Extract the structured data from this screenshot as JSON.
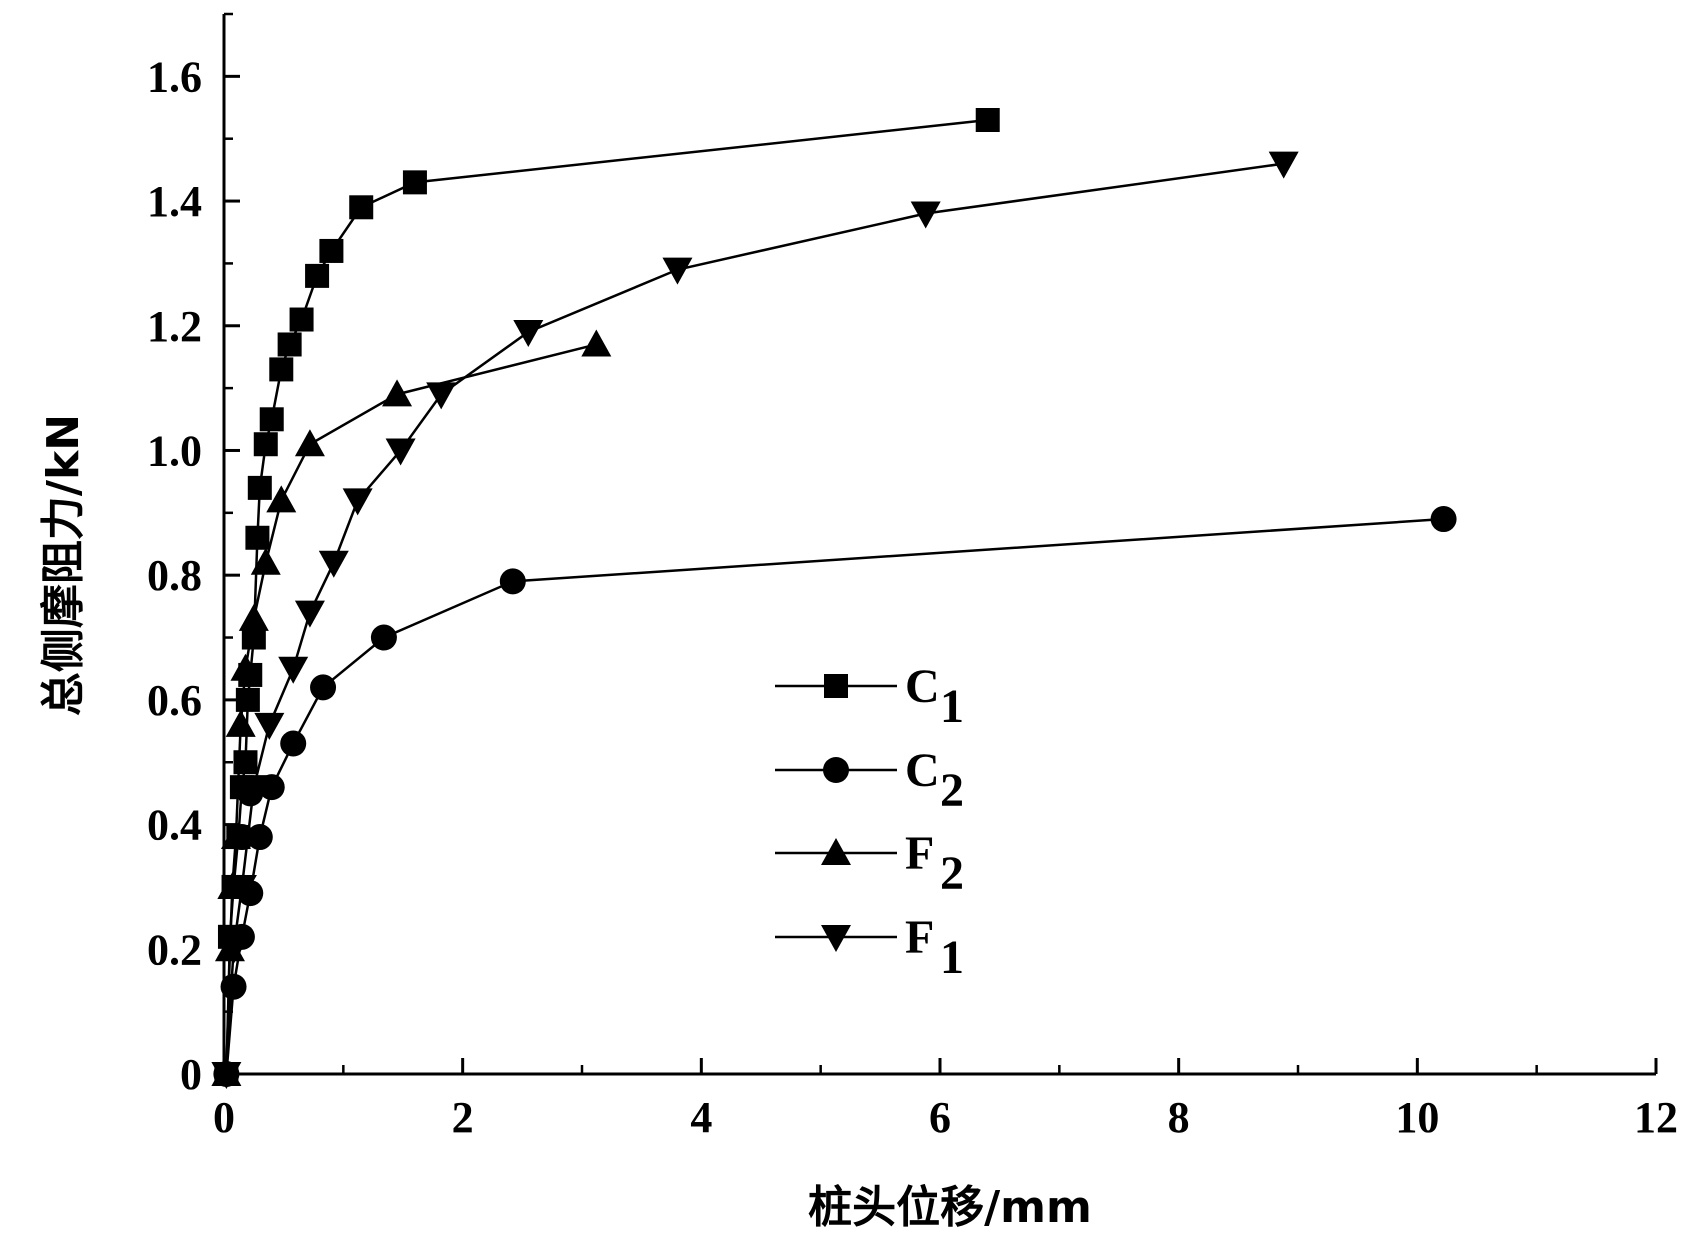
{
  "chart_data": {
    "type": "line",
    "title": "",
    "xlabel": "桩头位移/mm",
    "ylabel": "总侧摩阻力/kN",
    "xlim": [
      0,
      12
    ],
    "ylim": [
      0,
      1.7
    ],
    "xticks": [
      0,
      2,
      4,
      6,
      8,
      10,
      12
    ],
    "xtick_labels": [
      "0",
      "2",
      "4",
      "6",
      "8",
      "10",
      "12"
    ],
    "yticks": [
      0,
      0.2,
      0.4,
      0.6,
      0.8,
      1.0,
      1.2,
      1.4,
      1.6
    ],
    "ytick_labels": [
      "0",
      "0.2",
      "0.4",
      "0.6",
      "0.8",
      "1.0",
      "1.2",
      "1.4",
      "1.6"
    ],
    "grid": false,
    "legend_position": "center-right",
    "series": [
      {
        "name": "C",
        "subscript": "1",
        "marker": "square",
        "x": [
          0.02,
          0.05,
          0.08,
          0.12,
          0.15,
          0.18,
          0.2,
          0.22,
          0.25,
          0.28,
          0.3,
          0.35,
          0.4,
          0.48,
          0.55,
          0.65,
          0.78,
          0.9,
          1.15,
          1.6,
          6.4
        ],
        "y": [
          0.0,
          0.22,
          0.3,
          0.38,
          0.46,
          0.5,
          0.6,
          0.64,
          0.7,
          0.86,
          0.94,
          1.01,
          1.05,
          1.13,
          1.17,
          1.21,
          1.28,
          1.32,
          1.39,
          1.43,
          1.53
        ]
      },
      {
        "name": "C",
        "subscript": "2",
        "marker": "circle",
        "x": [
          0.02,
          0.08,
          0.15,
          0.22,
          0.3,
          0.4,
          0.58,
          0.83,
          1.34,
          2.42,
          10.22
        ],
        "y": [
          0.0,
          0.14,
          0.22,
          0.29,
          0.38,
          0.46,
          0.53,
          0.62,
          0.7,
          0.79,
          0.89
        ],
        "extra_points": [
          {
            "x": 0.15,
            "y": 0.38
          },
          {
            "x": 0.22,
            "y": 0.45
          }
        ]
      },
      {
        "name": "F",
        "subscript": "2",
        "marker": "triangle-up",
        "x": [
          0.02,
          0.05,
          0.07,
          0.1,
          0.14,
          0.18,
          0.25,
          0.35,
          0.48,
          0.72,
          1.45,
          3.12
        ],
        "y": [
          0.0,
          0.2,
          0.3,
          0.38,
          0.56,
          0.65,
          0.73,
          0.82,
          0.92,
          1.01,
          1.09,
          1.17
        ]
      },
      {
        "name": "F",
        "subscript": "1",
        "marker": "triangle-down",
        "x": [
          0.02,
          0.08,
          0.15,
          0.25,
          0.38,
          0.58,
          0.72,
          0.92,
          1.12,
          1.48,
          1.82,
          2.55,
          3.8,
          5.88,
          8.88
        ],
        "y": [
          0.0,
          0.2,
          0.3,
          0.46,
          0.56,
          0.65,
          0.74,
          0.82,
          0.92,
          1.0,
          1.09,
          1.19,
          1.29,
          1.38,
          1.46
        ]
      }
    ]
  }
}
